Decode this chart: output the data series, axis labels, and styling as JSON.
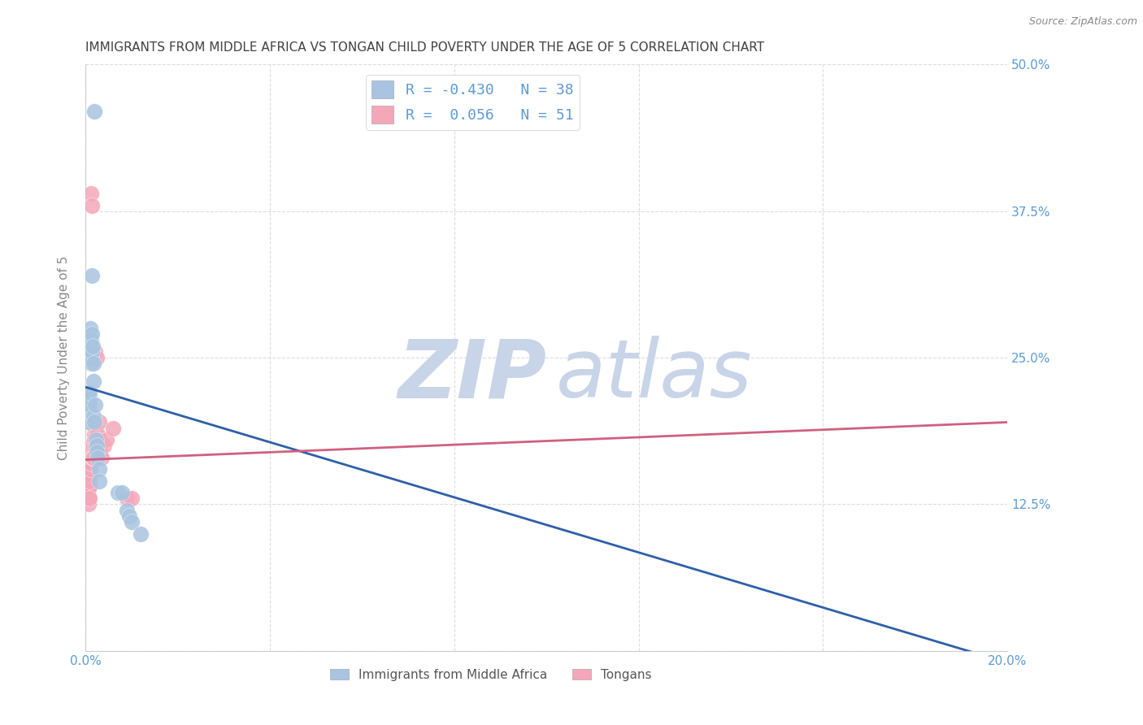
{
  "title": "IMMIGRANTS FROM MIDDLE AFRICA VS TONGAN CHILD POVERTY UNDER THE AGE OF 5 CORRELATION CHART",
  "source": "Source: ZipAtlas.com",
  "ylabel": "Child Poverty Under the Age of 5",
  "xlim": [
    0.0,
    0.2
  ],
  "ylim": [
    0.0,
    0.5
  ],
  "blue_R": -0.43,
  "blue_N": 38,
  "pink_R": 0.056,
  "pink_N": 51,
  "blue_color": "#a8c4e0",
  "pink_color": "#f4a7b9",
  "blue_line_color": "#2d5fa8",
  "pink_line_color": "#d06080",
  "blue_scatter": [
    [
      0.0005,
      0.22
    ],
    [
      0.0005,
      0.215
    ],
    [
      0.0005,
      0.2
    ],
    [
      0.0006,
      0.195
    ],
    [
      0.0006,
      0.215
    ],
    [
      0.0007,
      0.21
    ],
    [
      0.0007,
      0.205
    ],
    [
      0.0008,
      0.215
    ],
    [
      0.0008,
      0.21
    ],
    [
      0.0009,
      0.22
    ],
    [
      0.001,
      0.26
    ],
    [
      0.001,
      0.255
    ],
    [
      0.0011,
      0.275
    ],
    [
      0.0012,
      0.265
    ],
    [
      0.0013,
      0.25
    ],
    [
      0.0013,
      0.245
    ],
    [
      0.0014,
      0.27
    ],
    [
      0.0015,
      0.32
    ],
    [
      0.0015,
      0.255
    ],
    [
      0.0016,
      0.26
    ],
    [
      0.0017,
      0.245
    ],
    [
      0.0018,
      0.23
    ],
    [
      0.0018,
      0.2
    ],
    [
      0.002,
      0.195
    ],
    [
      0.002,
      0.46
    ],
    [
      0.0022,
      0.21
    ],
    [
      0.0023,
      0.18
    ],
    [
      0.0024,
      0.175
    ],
    [
      0.0025,
      0.17
    ],
    [
      0.0026,
      0.165
    ],
    [
      0.003,
      0.155
    ],
    [
      0.003,
      0.145
    ],
    [
      0.007,
      0.135
    ],
    [
      0.008,
      0.135
    ],
    [
      0.009,
      0.12
    ],
    [
      0.0095,
      0.115
    ],
    [
      0.01,
      0.11
    ],
    [
      0.012,
      0.1
    ]
  ],
  "pink_scatter": [
    [
      0.0003,
      0.165
    ],
    [
      0.0004,
      0.155
    ],
    [
      0.0004,
      0.15
    ],
    [
      0.0005,
      0.16
    ],
    [
      0.0005,
      0.145
    ],
    [
      0.0005,
      0.14
    ],
    [
      0.0006,
      0.15
    ],
    [
      0.0006,
      0.145
    ],
    [
      0.0006,
      0.135
    ],
    [
      0.0007,
      0.14
    ],
    [
      0.0007,
      0.13
    ],
    [
      0.0007,
      0.125
    ],
    [
      0.0008,
      0.155
    ],
    [
      0.0008,
      0.14
    ],
    [
      0.0008,
      0.13
    ],
    [
      0.0009,
      0.15
    ],
    [
      0.0009,
      0.145
    ],
    [
      0.001,
      0.17
    ],
    [
      0.001,
      0.165
    ],
    [
      0.001,
      0.155
    ],
    [
      0.0011,
      0.175
    ],
    [
      0.0012,
      0.16
    ],
    [
      0.0013,
      0.39
    ],
    [
      0.0013,
      0.17
    ],
    [
      0.0014,
      0.165
    ],
    [
      0.0015,
      0.175
    ],
    [
      0.0015,
      0.38
    ],
    [
      0.0016,
      0.165
    ],
    [
      0.0017,
      0.195
    ],
    [
      0.0018,
      0.175
    ],
    [
      0.0018,
      0.165
    ],
    [
      0.0019,
      0.18
    ],
    [
      0.002,
      0.185
    ],
    [
      0.0021,
      0.175
    ],
    [
      0.0021,
      0.255
    ],
    [
      0.0022,
      0.19
    ],
    [
      0.0023,
      0.185
    ],
    [
      0.0024,
      0.175
    ],
    [
      0.0025,
      0.25
    ],
    [
      0.0026,
      0.17
    ],
    [
      0.0027,
      0.185
    ],
    [
      0.0028,
      0.18
    ],
    [
      0.003,
      0.195
    ],
    [
      0.003,
      0.175
    ],
    [
      0.0032,
      0.17
    ],
    [
      0.0035,
      0.165
    ],
    [
      0.004,
      0.175
    ],
    [
      0.0045,
      0.18
    ],
    [
      0.006,
      0.19
    ],
    [
      0.009,
      0.13
    ],
    [
      0.01,
      0.13
    ]
  ],
  "blue_trend_x": [
    0.0,
    0.2
  ],
  "blue_trend_y": [
    0.225,
    -0.01
  ],
  "pink_trend_x": [
    0.0,
    0.2
  ],
  "pink_trend_y": [
    0.163,
    0.195
  ],
  "watermark_zip": "ZIP",
  "watermark_atlas": "atlas",
  "watermark_color": "#c8d4e8",
  "background_color": "#ffffff",
  "grid_color": "#dddddd",
  "title_color": "#404040",
  "tick_label_color": "#5b9bd5",
  "legend_label1": "R = -0.430   N = 38",
  "legend_label2": "R =  0.056   N = 51",
  "series_label1": "Immigrants from Middle Africa",
  "series_label2": "Tongans"
}
